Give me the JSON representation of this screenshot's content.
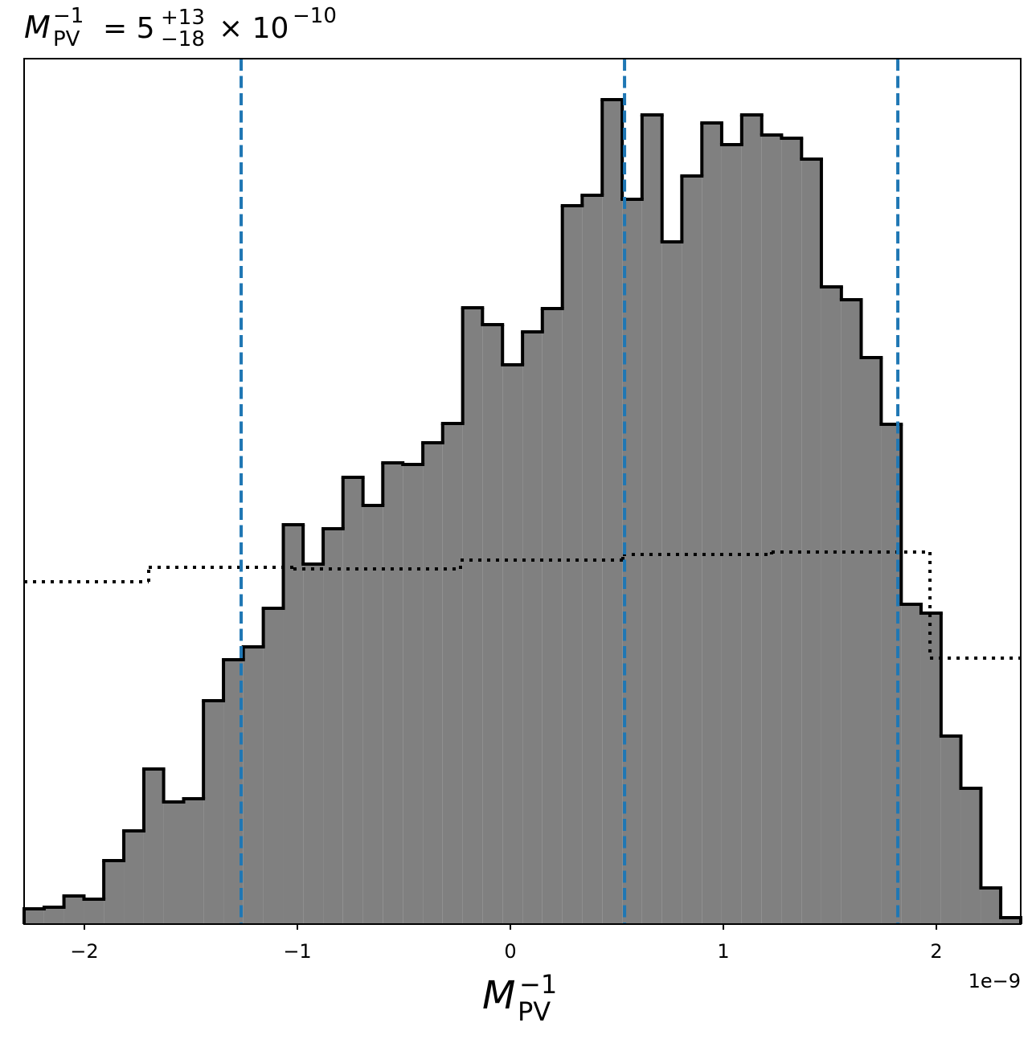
{
  "chart_data": {
    "type": "histogram",
    "title": {
      "symbol": "M",
      "subscript": "PV",
      "superscript": "−1",
      "rest": "= 5",
      "upper": "+13",
      "lower": "−18",
      "tail": "× 10",
      "exponent": "−10"
    },
    "xlabel": {
      "symbol": "M",
      "subscript": "PV",
      "superscript": "−1"
    },
    "x_offset_label": "1e−9",
    "bins": [
      -2.283,
      -2.189,
      -2.096,
      -2.002,
      -1.909,
      -1.815,
      -1.721,
      -1.628,
      -1.534,
      -1.441,
      -1.347,
      -1.254,
      -1.16,
      -1.066,
      -0.973,
      -0.879,
      -0.786,
      -0.692,
      -0.599,
      -0.505,
      -0.411,
      -0.318,
      -0.224,
      -0.131,
      -0.037,
      0.057,
      0.15,
      0.244,
      0.337,
      0.431,
      0.525,
      0.618,
      0.712,
      0.805,
      0.899,
      0.992,
      1.086,
      1.18,
      1.273,
      1.367,
      1.46,
      1.554,
      1.647,
      1.741,
      1.835,
      1.928,
      2.022,
      2.115,
      2.209,
      2.302,
      2.396
    ],
    "values": [
      19,
      21,
      35,
      31,
      79,
      116,
      193,
      152,
      156,
      278,
      329,
      345,
      393,
      497,
      448,
      492,
      556,
      521,
      574,
      572,
      599,
      623,
      767,
      746,
      696,
      737,
      766,
      894,
      907,
      1026,
      902,
      1007,
      849,
      931,
      997,
      970,
      1007,
      982,
      978,
      952,
      793,
      777,
      705,
      622,
      398,
      387,
      234,
      169,
      45,
      8
    ],
    "color": "#808080",
    "edgecolor": "#000000",
    "prior_bins": [
      -2.283,
      -1.698,
      -1.019,
      -0.234,
      0.528,
      1.226,
      1.97,
      2.396
    ],
    "prior_values": [
      426,
      444,
      442,
      453,
      460,
      463,
      331
    ],
    "prior_color": "#000000",
    "vlines": [
      -1.264,
      0.536,
      1.819
    ],
    "vline_color": "#1f77b4",
    "xlim": [
      -2.283,
      2.396
    ],
    "ylim": [
      0,
      1077
    ],
    "xticks": [
      {
        "value": -2,
        "label": "−2"
      },
      {
        "value": -1,
        "label": "−1"
      },
      0,
      1,
      2
    ]
  }
}
